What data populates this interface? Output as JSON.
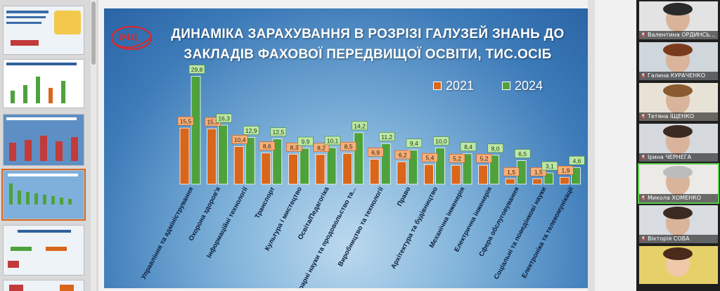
{
  "slide": {
    "title_line1": "ДИНАМІКА ЗАРАХУВАННЯ В РОЗРІЗІ ГАЛУЗЕЙ ЗНАНЬ ДО",
    "title_line2": "ЗАКЛАДІВ ФАХОВОЇ ПЕРЕДВИЩОЇ ОСВІТИ, ТИС.ОСІБ",
    "logo_text": "ІМЦ"
  },
  "chart_data": {
    "type": "bar",
    "title": "ДИНАМІКА ЗАРАХУВАННЯ В РОЗРІЗІ ГАЛУЗЕЙ ЗНАНЬ ДО ЗАКЛАДІВ ФАХОВОЇ ПЕРЕДВИЩОЇ ОСВІТИ, ТИС.ОСІБ",
    "legend_position": "top-right",
    "grid": false,
    "ylim": [
      0,
      32
    ],
    "categories": [
      "Управління та адміністрування",
      "Охорона здоров'я",
      "Інформаційні технології",
      "Транспорт",
      "Культура і мистецтво",
      "Освіта/Педагогіка",
      "Аграрні науки та продовольство та...",
      "Виробництво та технології",
      "Право",
      "Архітектура та будівництво",
      "Механічна інженерія",
      "Електрична інженерія",
      "Сфера обслуговування",
      "Соціальні та поведінкові науки",
      "Електроніка та телекомунікації"
    ],
    "series": [
      {
        "name": "2021",
        "color": "#d9661a",
        "values": [
          15.5,
          15.3,
          10.4,
          8.6,
          8.3,
          8.2,
          8.5,
          6.9,
          6.2,
          5.4,
          5.2,
          5.2,
          1.5,
          1.5,
          1.9
        ]
      },
      {
        "name": "2024",
        "color": "#4ea23c",
        "values": [
          29.8,
          16.3,
          12.9,
          12.5,
          9.9,
          10.1,
          14.2,
          11.2,
          9.4,
          10.0,
          8.4,
          8.0,
          6.5,
          3.1,
          4.6
        ]
      }
    ],
    "labels": {
      "2021": [
        "15,5",
        "15,3",
        "10,4",
        "8,6",
        "8,3",
        "8,2",
        "8,5",
        "6,9",
        "6,2",
        "5,4",
        "5,2",
        "5,2",
        "1,5",
        "1,5",
        "1,9"
      ],
      "2024": [
        "29,8",
        "16,3",
        "12,9",
        "12,5",
        "9,9",
        "10,1",
        "14,2",
        "11,2",
        "9,4",
        "10,0",
        "8,4",
        "8,0",
        "6,5",
        "3,1",
        "4,6"
      ]
    }
  },
  "participants": [
    {
      "name": "Валентина ОРДИНСЬ...",
      "bg": "#e3e3e3",
      "active": false
    },
    {
      "name": "Галина КУРАЧЕНКО",
      "bg": "#cfd6dc",
      "active": false
    },
    {
      "name": "Тетяна ІЩЕНКО",
      "bg": "#e8e2d6",
      "active": false
    },
    {
      "name": "Ірина ЧЕРНЕГА",
      "bg": "#d5d8dc",
      "active": false
    },
    {
      "name": "Микола ХОМЕНКО",
      "bg": "#eceae6",
      "active": true
    },
    {
      "name": "Вікторія СОВА",
      "bg": "#d8dbe0",
      "active": false
    },
    {
      "name": "",
      "bg": "#e6d06a",
      "active": false
    }
  ]
}
